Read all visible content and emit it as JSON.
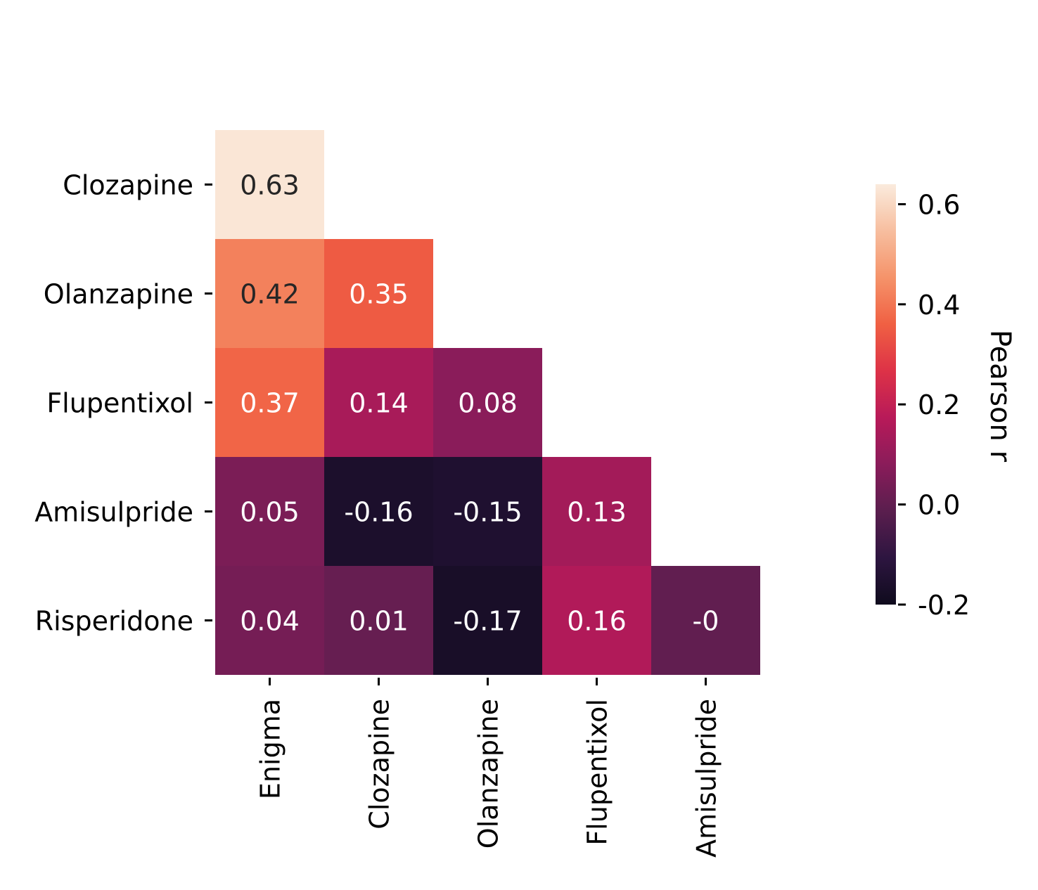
{
  "chart_data": {
    "type": "heatmap",
    "title": "",
    "xlabel": "",
    "ylabel": "",
    "x_categories": [
      "Enigma",
      "Clozapine",
      "Olanzapine",
      "Flupentixol",
      "Amisulpride"
    ],
    "y_categories": [
      "Clozapine",
      "Olanzapine",
      "Flupentixol",
      "Amisulpride",
      "Risperidone"
    ],
    "mask": "upper-triangle",
    "cells": [
      {
        "row": "Clozapine",
        "col": "Enigma",
        "value": 0.63,
        "label": "0.63"
      },
      {
        "row": "Olanzapine",
        "col": "Enigma",
        "value": 0.42,
        "label": "0.42"
      },
      {
        "row": "Olanzapine",
        "col": "Clozapine",
        "value": 0.35,
        "label": "0.35"
      },
      {
        "row": "Flupentixol",
        "col": "Enigma",
        "value": 0.37,
        "label": "0.37"
      },
      {
        "row": "Flupentixol",
        "col": "Clozapine",
        "value": 0.14,
        "label": "0.14"
      },
      {
        "row": "Flupentixol",
        "col": "Olanzapine",
        "value": 0.08,
        "label": "0.08"
      },
      {
        "row": "Amisulpride",
        "col": "Enigma",
        "value": 0.05,
        "label": "0.05"
      },
      {
        "row": "Amisulpride",
        "col": "Clozapine",
        "value": -0.16,
        "label": "-0.16"
      },
      {
        "row": "Amisulpride",
        "col": "Olanzapine",
        "value": -0.15,
        "label": "-0.15"
      },
      {
        "row": "Amisulpride",
        "col": "Flupentixol",
        "value": 0.13,
        "label": "0.13"
      },
      {
        "row": "Risperidone",
        "col": "Enigma",
        "value": 0.04,
        "label": "0.04"
      },
      {
        "row": "Risperidone",
        "col": "Clozapine",
        "value": 0.01,
        "label": "0.01"
      },
      {
        "row": "Risperidone",
        "col": "Olanzapine",
        "value": -0.17,
        "label": "-0.17"
      },
      {
        "row": "Risperidone",
        "col": "Flupentixol",
        "value": 0.16,
        "label": "0.16"
      },
      {
        "row": "Risperidone",
        "col": "Amisulpride",
        "value": 0.0,
        "label": "-0"
      }
    ],
    "colorbar": {
      "label": "Pearson r",
      "vmin": -0.2,
      "vmax": 0.64,
      "ticks": [
        -0.2,
        0.0,
        0.2,
        0.4,
        0.6
      ],
      "tick_labels": [
        "-0.2",
        "0.0",
        "0.2",
        "0.4",
        "0.6"
      ],
      "colormap": "rocket",
      "colormap_stops": [
        "#0f0b1d",
        "#2d1540",
        "#5a1e4e",
        "#8a1c5a",
        "#b81a59",
        "#dd3247",
        "#f06043",
        "#f5936a",
        "#f7be9f",
        "#faebdd"
      ]
    }
  }
}
